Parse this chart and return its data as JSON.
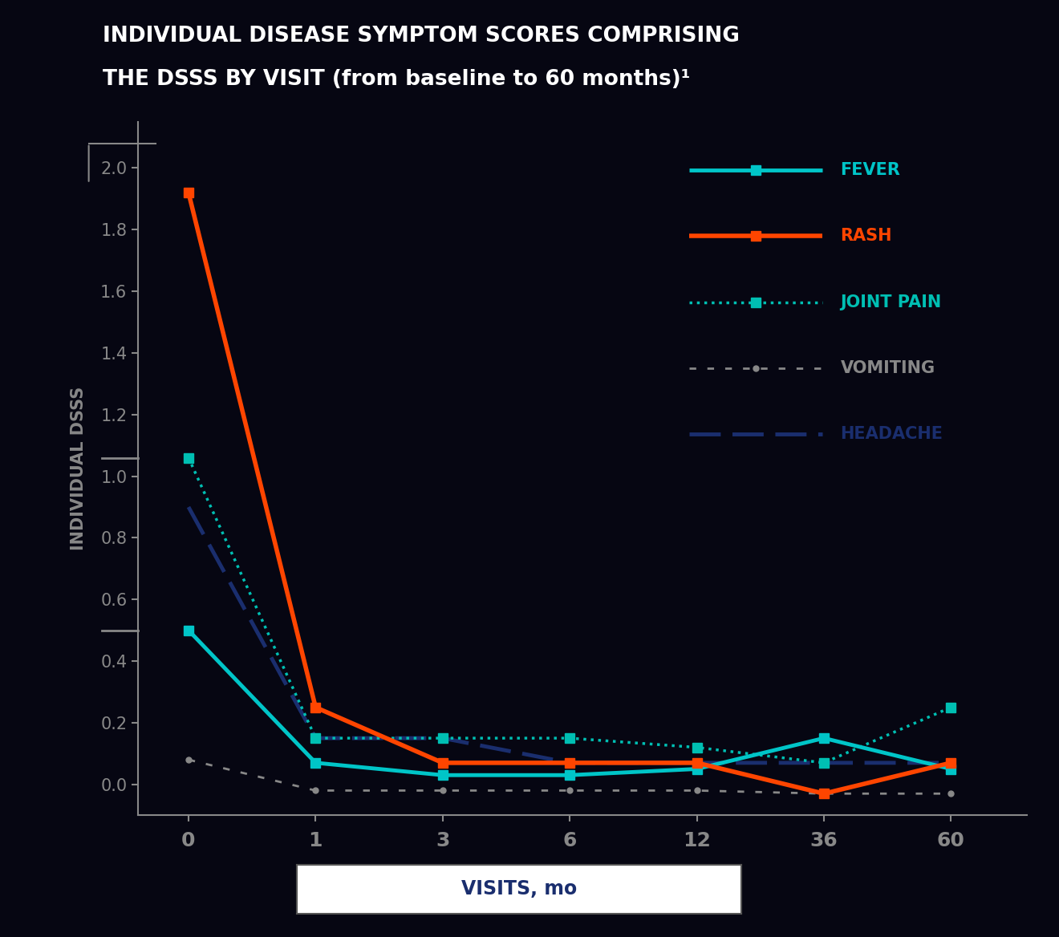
{
  "title_line1": "INDIVIDUAL DISEASE SYMPTOM SCORES COMPRISING",
  "title_line2": "THE DSSS BY VISIT (from baseline to 60 months)¹",
  "title_bg_color": "#2AACB0",
  "title_text_color": "#FFFFFF",
  "bg_color": "#060612",
  "plot_bg_color": "#060612",
  "xlabel": "VISITS, mo",
  "ylabel": "INDIVIDUAL DSSS",
  "x_visits": [
    0,
    1,
    3,
    6,
    12,
    36,
    60
  ],
  "x_positions": [
    0,
    1,
    2,
    3,
    4,
    5,
    6
  ],
  "fever": [
    0.5,
    0.07,
    0.03,
    0.03,
    0.05,
    0.15,
    0.05
  ],
  "rash": [
    1.92,
    0.25,
    0.07,
    0.07,
    0.07,
    -0.03,
    0.07
  ],
  "joint_pain": [
    1.06,
    0.15,
    0.15,
    0.15,
    0.12,
    0.07,
    0.25
  ],
  "vomiting": [
    0.08,
    -0.02,
    -0.02,
    -0.02,
    -0.02,
    -0.03,
    -0.03
  ],
  "headache": [
    0.9,
    0.15,
    0.15,
    0.07,
    0.07,
    0.07,
    0.07
  ],
  "fever_color": "#00C5C8",
  "rash_color": "#FF4500",
  "joint_pain_color": "#00BFB3",
  "vomiting_color": "#888888",
  "headache_color": "#1a2e6e",
  "yticks": [
    0.0,
    0.2,
    0.4,
    0.6,
    0.8,
    1.0,
    1.2,
    1.4,
    1.6,
    1.8,
    2.0
  ],
  "ylim_min": -0.1,
  "ylim_max": 2.15,
  "axis_color": "#888888",
  "tick_color": "#888888",
  "ylabel_color": "#888888",
  "xlabel_box_color": "#ffffff",
  "xlabel_text_color": "#1a2e6e"
}
